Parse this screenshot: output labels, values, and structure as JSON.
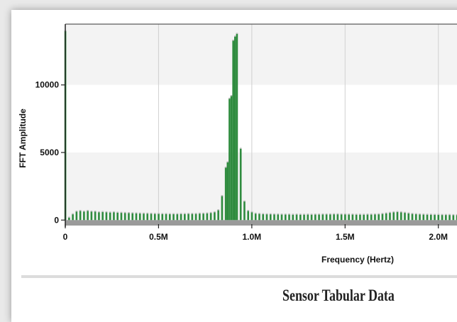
{
  "section_title": "Sensor Tabular Data",
  "colors": {
    "bar": "#2e8b3e",
    "bar_cap": "#bdbdbd",
    "band_shaded": "#f3f3f3",
    "band_plain": "#ffffff",
    "gridline": "#d0d0d0",
    "baseline": "#9a9a9a"
  },
  "chart_data": {
    "type": "bar",
    "xlabel": "Frequency (Hertz)",
    "ylabel": "FFT  Amplitude",
    "xlim": [
      0,
      2100000
    ],
    "ylim": [
      -300,
      14500
    ],
    "x_ticks": [
      {
        "value": 0,
        "label": "0"
      },
      {
        "value": 500000,
        "label": "0.5M"
      },
      {
        "value": 1000000,
        "label": "1.0M"
      },
      {
        "value": 1500000,
        "label": "1.5M"
      },
      {
        "value": 2000000,
        "label": "2.0M"
      }
    ],
    "y_ticks": [
      {
        "value": 0,
        "label": "0"
      },
      {
        "value": 5000,
        "label": "5000"
      },
      {
        "value": 10000,
        "label": "10000"
      }
    ],
    "grid": true,
    "points": [
      [
        0,
        14000
      ],
      [
        20000,
        200
      ],
      [
        40000,
        450
      ],
      [
        60000,
        650
      ],
      [
        80000,
        700
      ],
      [
        100000,
        650
      ],
      [
        120000,
        700
      ],
      [
        140000,
        650
      ],
      [
        160000,
        650
      ],
      [
        180000,
        600
      ],
      [
        200000,
        620
      ],
      [
        220000,
        600
      ],
      [
        240000,
        580
      ],
      [
        260000,
        600
      ],
      [
        280000,
        570
      ],
      [
        300000,
        560
      ],
      [
        320000,
        550
      ],
      [
        340000,
        540
      ],
      [
        360000,
        530
      ],
      [
        380000,
        520
      ],
      [
        400000,
        510
      ],
      [
        420000,
        500
      ],
      [
        440000,
        500
      ],
      [
        460000,
        490
      ],
      [
        480000,
        480
      ],
      [
        500000,
        480
      ],
      [
        520000,
        470
      ],
      [
        540000,
        470
      ],
      [
        560000,
        460
      ],
      [
        580000,
        460
      ],
      [
        600000,
        460
      ],
      [
        620000,
        470
      ],
      [
        640000,
        470
      ],
      [
        660000,
        480
      ],
      [
        680000,
        480
      ],
      [
        700000,
        480
      ],
      [
        720000,
        500
      ],
      [
        740000,
        500
      ],
      [
        760000,
        520
      ],
      [
        780000,
        550
      ],
      [
        800000,
        600
      ],
      [
        820000,
        750
      ],
      [
        840000,
        1800
      ],
      [
        860000,
        3900
      ],
      [
        870000,
        4300
      ],
      [
        880000,
        9000
      ],
      [
        890000,
        9200
      ],
      [
        900000,
        13300
      ],
      [
        910000,
        13600
      ],
      [
        920000,
        13800
      ],
      [
        940000,
        5300
      ],
      [
        960000,
        1400
      ],
      [
        980000,
        700
      ],
      [
        1000000,
        600
      ],
      [
        1020000,
        500
      ],
      [
        1040000,
        480
      ],
      [
        1060000,
        460
      ],
      [
        1080000,
        450
      ],
      [
        1100000,
        450
      ],
      [
        1120000,
        440
      ],
      [
        1140000,
        440
      ],
      [
        1160000,
        430
      ],
      [
        1180000,
        430
      ],
      [
        1200000,
        430
      ],
      [
        1220000,
        420
      ],
      [
        1240000,
        430
      ],
      [
        1260000,
        420
      ],
      [
        1280000,
        420
      ],
      [
        1300000,
        430
      ],
      [
        1320000,
        420
      ],
      [
        1340000,
        430
      ],
      [
        1360000,
        430
      ],
      [
        1380000,
        440
      ],
      [
        1400000,
        440
      ],
      [
        1420000,
        440
      ],
      [
        1440000,
        450
      ],
      [
        1460000,
        450
      ],
      [
        1480000,
        440
      ],
      [
        1500000,
        440
      ],
      [
        1520000,
        430
      ],
      [
        1540000,
        430
      ],
      [
        1560000,
        420
      ],
      [
        1580000,
        420
      ],
      [
        1600000,
        420
      ],
      [
        1620000,
        430
      ],
      [
        1640000,
        430
      ],
      [
        1660000,
        440
      ],
      [
        1680000,
        450
      ],
      [
        1700000,
        480
      ],
      [
        1720000,
        520
      ],
      [
        1740000,
        560
      ],
      [
        1760000,
        600
      ],
      [
        1780000,
        620
      ],
      [
        1800000,
        600
      ],
      [
        1820000,
        560
      ],
      [
        1840000,
        520
      ],
      [
        1860000,
        480
      ],
      [
        1880000,
        460
      ],
      [
        1900000,
        440
      ],
      [
        1920000,
        430
      ],
      [
        1940000,
        420
      ],
      [
        1960000,
        420
      ],
      [
        1980000,
        410
      ],
      [
        2000000,
        410
      ],
      [
        2020000,
        400
      ],
      [
        2040000,
        400
      ],
      [
        2060000,
        400
      ],
      [
        2080000,
        390
      ],
      [
        2100000,
        390
      ]
    ]
  }
}
